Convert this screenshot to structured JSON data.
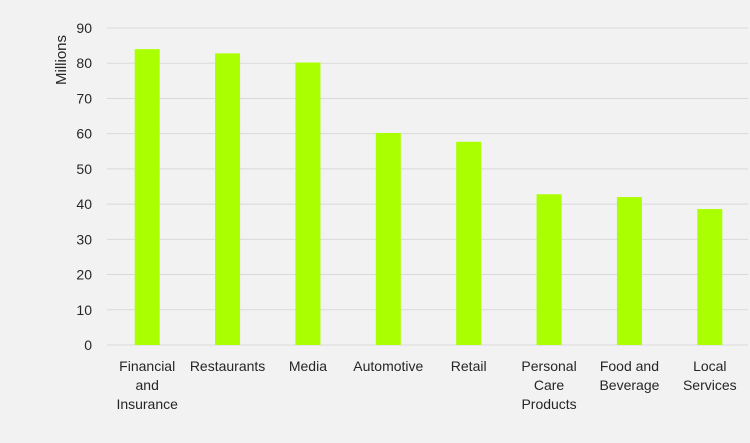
{
  "chart_data": {
    "type": "bar",
    "categories": [
      [
        "Financial",
        "and",
        "Insurance"
      ],
      [
        "Restaurants"
      ],
      [
        "Media"
      ],
      [
        "Automotive"
      ],
      [
        "Retail"
      ],
      [
        "Personal",
        "Care",
        "Products"
      ],
      [
        "Food and",
        "Beverage"
      ],
      [
        "Local",
        "Services"
      ]
    ],
    "values": [
      84,
      82.8,
      80.2,
      60.2,
      57.7,
      42.8,
      42,
      38.6
    ],
    "title": "",
    "xlabel": "",
    "ylabel": "Millions",
    "ylim": [
      0,
      90
    ],
    "yticks": [
      0,
      10,
      20,
      30,
      40,
      50,
      60,
      70,
      80,
      90
    ],
    "grid": true,
    "legend": "none"
  },
  "colors": {
    "bar": "#aaff00",
    "grid": "#d9d9d9",
    "text": "#262626",
    "background": "#f2f2f2"
  }
}
